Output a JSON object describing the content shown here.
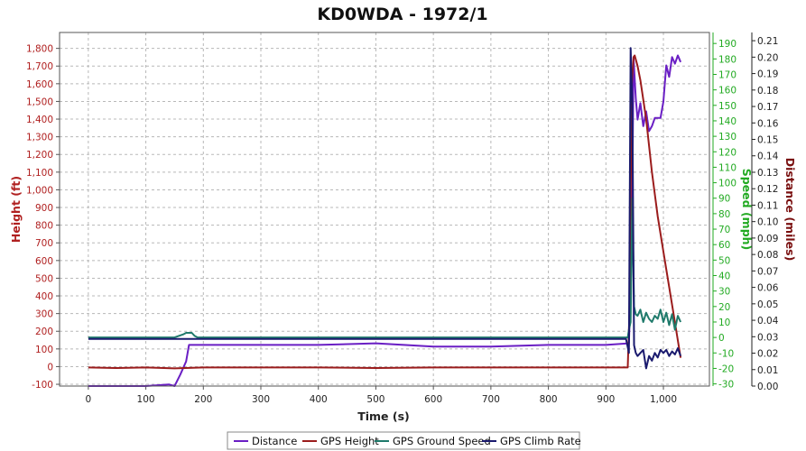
{
  "chart_data": {
    "type": "line",
    "title": "KD0WDA - 1972/1",
    "xlabel": "Time (s)",
    "ylabel_left": "Height (ft)",
    "ylabel_right_speed": "Speed (mph)",
    "ylabel_right_distance": "Distance (miles)",
    "xlim": [
      -50,
      1080
    ],
    "ylim_height": [
      -110,
      1890
    ],
    "ylim_speed": [
      -31.4,
      197.1
    ],
    "ylim_distance": [
      0,
      0.215
    ],
    "x_ticks": [
      "0",
      "100",
      "200",
      "300",
      "400",
      "500",
      "600",
      "700",
      "800",
      "900",
      "1,000"
    ],
    "height_ticks": [
      "-100",
      "0",
      "100",
      "200",
      "300",
      "400",
      "500",
      "600",
      "700",
      "800",
      "900",
      "1,000",
      "1,100",
      "1,200",
      "1,300",
      "1,400",
      "1,500",
      "1,600",
      "1,700",
      "1,800"
    ],
    "speed_ticks": [
      "-30",
      "-20",
      "-10",
      "0",
      "10",
      "20",
      "30",
      "40",
      "50",
      "60",
      "70",
      "80",
      "90",
      "100",
      "110",
      "120",
      "130",
      "140",
      "150",
      "160",
      "170",
      "180",
      "190"
    ],
    "distance_ticks": [
      "0.00",
      "0.01",
      "0.02",
      "0.03",
      "0.04",
      "0.05",
      "0.06",
      "0.07",
      "0.08",
      "0.09",
      "0.10",
      "0.11",
      "0.12",
      "0.13",
      "0.14",
      "0.15",
      "0.16",
      "0.17",
      "0.18",
      "0.19",
      "0.20",
      "0.21"
    ],
    "grid": true,
    "legend_position": "bottom",
    "series": [
      {
        "name": "Distance",
        "axis": "distance",
        "color": "#6a1fc4",
        "x": [
          0,
          50,
          100,
          140,
          150,
          160,
          170,
          175,
          200,
          300,
          400,
          500,
          600,
          700,
          800,
          850,
          900,
          940,
          945,
          948,
          952,
          955,
          960,
          965,
          970,
          975,
          980,
          985,
          990,
          995,
          1000,
          1005,
          1010,
          1015,
          1020,
          1025,
          1030
        ],
        "values": [
          0.0,
          0.0,
          0.0,
          0.001,
          0.0,
          0.007,
          0.015,
          0.025,
          0.025,
          0.025,
          0.025,
          0.026,
          0.024,
          0.024,
          0.025,
          0.025,
          0.025,
          0.026,
          0.08,
          0.2,
          0.175,
          0.162,
          0.172,
          0.158,
          0.167,
          0.155,
          0.158,
          0.163,
          0.163,
          0.163,
          0.173,
          0.195,
          0.188,
          0.2,
          0.196,
          0.201,
          0.197
        ]
      },
      {
        "name": "GPS Height",
        "axis": "height",
        "color": "#9b1c1c",
        "x": [
          0,
          50,
          100,
          150,
          200,
          250,
          300,
          400,
          500,
          600,
          700,
          800,
          900,
          938,
          941,
          945,
          948,
          950,
          955,
          960,
          970,
          980,
          990,
          1000,
          1010,
          1020,
          1030
        ],
        "values": [
          -5,
          -8,
          -5,
          -10,
          -5,
          -5,
          -5,
          -5,
          -8,
          -5,
          -5,
          -5,
          -5,
          -5,
          300,
          1600,
          1750,
          1760,
          1700,
          1620,
          1400,
          1100,
          850,
          650,
          450,
          250,
          50
        ]
      },
      {
        "name": "GPS Ground Speed",
        "axis": "speed",
        "color": "#1f7a6b",
        "x": [
          0,
          50,
          100,
          150,
          165,
          170,
          180,
          185,
          190,
          200,
          250,
          300,
          400,
          500,
          600,
          700,
          800,
          900,
          938,
          940,
          943,
          946,
          949,
          952,
          955,
          960,
          965,
          970,
          975,
          980,
          985,
          990,
          995,
          1000,
          1005,
          1010,
          1015,
          1020,
          1025,
          1030
        ],
        "values": [
          0,
          0,
          0,
          0,
          2,
          3,
          3,
          1,
          0,
          0,
          0,
          0,
          0,
          0,
          0,
          0,
          0,
          0,
          0,
          5,
          10,
          90,
          20,
          15,
          14,
          18,
          10,
          16,
          12,
          10,
          14,
          12,
          18,
          10,
          16,
          8,
          15,
          5,
          14,
          10
        ]
      },
      {
        "name": "GPS Climb Rate",
        "axis": "speed",
        "color": "#1a1a6e",
        "x": [
          0,
          100,
          200,
          300,
          400,
          500,
          600,
          700,
          800,
          900,
          935,
          940,
          943,
          946,
          949,
          952,
          955,
          960,
          965,
          970,
          975,
          980,
          985,
          990,
          995,
          1000,
          1005,
          1010,
          1015,
          1020,
          1025,
          1030
        ],
        "values": [
          -1,
          -1,
          -1,
          -1,
          -1,
          -1,
          -1,
          -1,
          -1,
          -1,
          -1,
          -10,
          187,
          150,
          -5,
          -10,
          -12,
          -10,
          -8,
          -20,
          -12,
          -15,
          -10,
          -13,
          -8,
          -10,
          -8,
          -12,
          -9,
          -11,
          -7,
          -12
        ]
      }
    ]
  }
}
